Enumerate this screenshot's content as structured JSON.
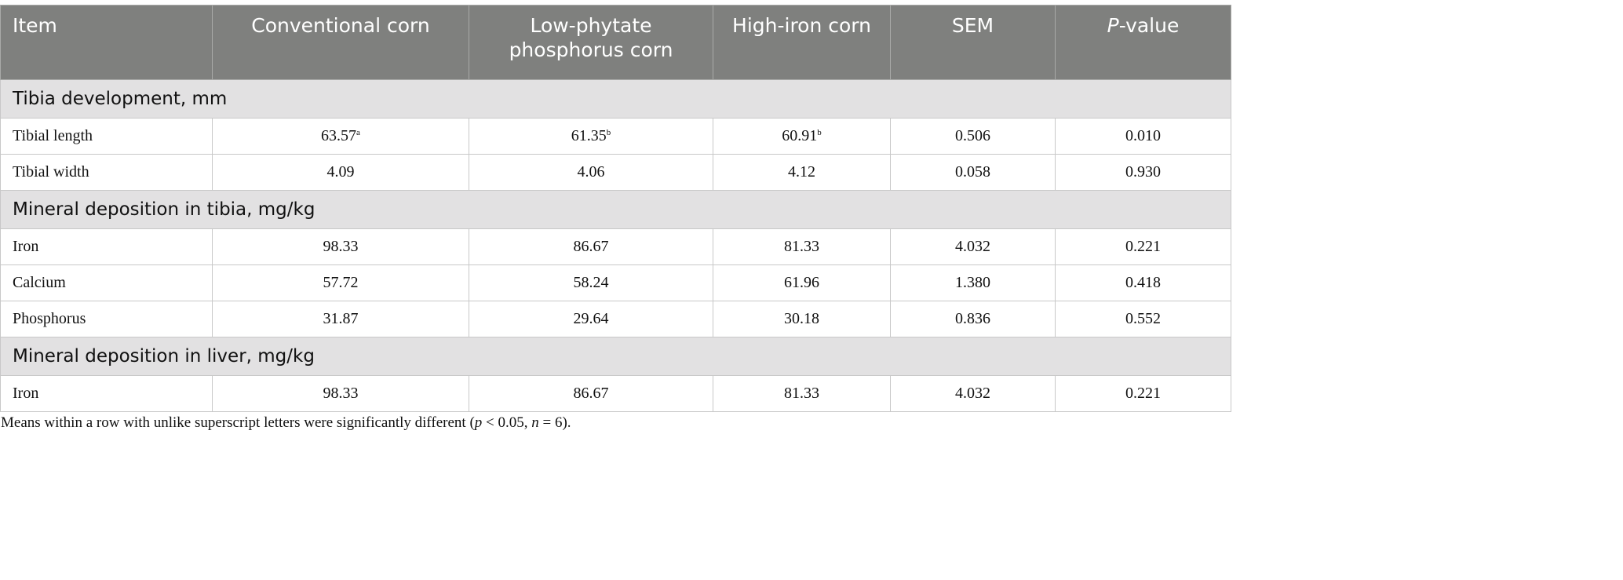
{
  "headers": {
    "item": "Item",
    "conventional": "Conventional corn",
    "low_phytate": "Low-phytate phosphorus corn",
    "high_iron": "High-iron corn",
    "sem": "SEM",
    "p_italic": "P",
    "p_rest": "-value"
  },
  "sections": [
    {
      "title": "Tibia development, mm",
      "rows": [
        {
          "label": "Tibial length",
          "conventional": "63.57",
          "conventional_sup": "a",
          "low_phytate": "61.35",
          "low_phytate_sup": "b",
          "high_iron": "60.91",
          "high_iron_sup": "b",
          "sem": "0.506",
          "p": "0.010"
        },
        {
          "label": "Tibial width",
          "conventional": "4.09",
          "low_phytate": "4.06",
          "high_iron": "4.12",
          "sem": "0.058",
          "p": "0.930"
        }
      ]
    },
    {
      "title": "Mineral deposition in tibia, mg/kg",
      "rows": [
        {
          "label": "Iron",
          "conventional": "98.33",
          "low_phytate": "86.67",
          "high_iron": "81.33",
          "sem": "4.032",
          "p": "0.221"
        },
        {
          "label": "Calcium",
          "conventional": "57.72",
          "low_phytate": "58.24",
          "high_iron": "61.96",
          "sem": "1.380",
          "p": "0.418"
        },
        {
          "label": "Phosphorus",
          "conventional": "31.87",
          "low_phytate": "29.64",
          "high_iron": "30.18",
          "sem": "0.836",
          "p": "0.552"
        }
      ]
    },
    {
      "title": "Mineral deposition in liver, mg/kg",
      "rows": [
        {
          "label": "Iron",
          "conventional": "98.33",
          "low_phytate": "86.67",
          "high_iron": "81.33",
          "sem": "4.032",
          "p": "0.221"
        }
      ]
    }
  ],
  "footnote": {
    "text1": "Means within a row with unlike superscript letters were significantly different (",
    "p": "p",
    "text2": " < 0.05, ",
    "n": "n",
    "text3": " = 6)."
  }
}
